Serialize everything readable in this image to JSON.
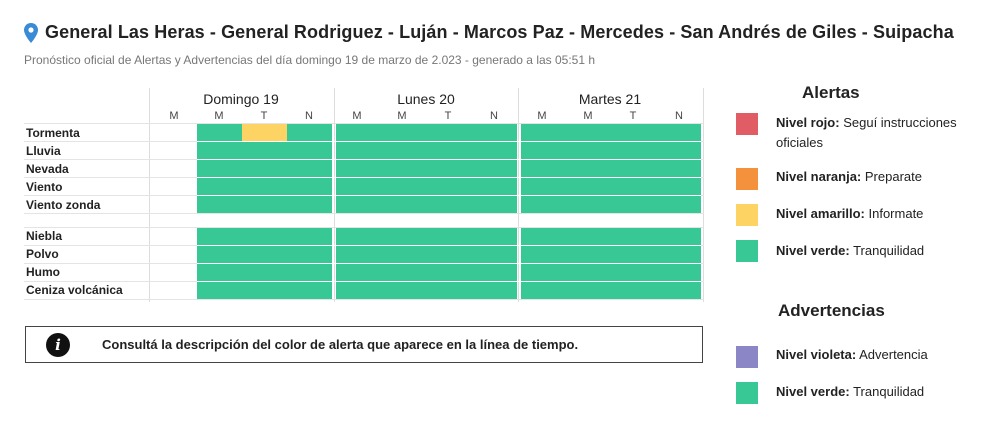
{
  "header": {
    "title": "General Las Heras - General Rodriguez - Luján - Marcos Paz - Mercedes - San Andrés de Giles - Suipacha",
    "subtitle": "Pronóstico oficial de Alertas y Advertencias del día domingo 19 de marzo de 2.023 - generado a las 05:51 h",
    "icon": "location-pin-icon"
  },
  "timeline": {
    "days": [
      {
        "label": "Domingo 19",
        "periods": [
          "M",
          "M",
          "T",
          "N"
        ]
      },
      {
        "label": "Lunes 20",
        "periods": [
          "M",
          "M",
          "T",
          "N"
        ]
      },
      {
        "label": "Martes 21",
        "periods": [
          "M",
          "M",
          "T",
          "N"
        ]
      }
    ],
    "rows": [
      {
        "label": "Tormenta"
      },
      {
        "label": "Lluvia"
      },
      {
        "label": "Nevada"
      },
      {
        "label": "Viento"
      },
      {
        "label": "Viento zonda"
      },
      {
        "label": "Niebla"
      },
      {
        "label": "Polvo"
      },
      {
        "label": "Humo"
      },
      {
        "label": "Ceniza volcánica"
      }
    ],
    "highlight": {
      "row": "Tormenta",
      "day": "Domingo 19",
      "period": "T",
      "level": "amarillo"
    }
  },
  "info": {
    "icon": "info-icon",
    "text": "Consultá la descripción del color de alerta que aparece en la línea de tiempo."
  },
  "legend": {
    "alertas": {
      "heading": "Alertas",
      "items": [
        {
          "level": "Nivel rojo:",
          "desc": "Seguí instrucciones oficiales",
          "color": "#e05d66"
        },
        {
          "level": "Nivel naranja:",
          "desc": "Preparate",
          "color": "#f4913d"
        },
        {
          "level": "Nivel amarillo:",
          "desc": "Informate",
          "color": "#fdd463"
        },
        {
          "level": "Nivel verde:",
          "desc": "Tranquilidad",
          "color": "#37c895"
        }
      ]
    },
    "advertencias": {
      "heading": "Advertencias",
      "items": [
        {
          "level": "Nivel violeta:",
          "desc": "Advertencia",
          "color": "#8b86c6"
        },
        {
          "level": "Nivel verde:",
          "desc": "Tranquilidad",
          "color": "#37c895"
        }
      ]
    }
  }
}
